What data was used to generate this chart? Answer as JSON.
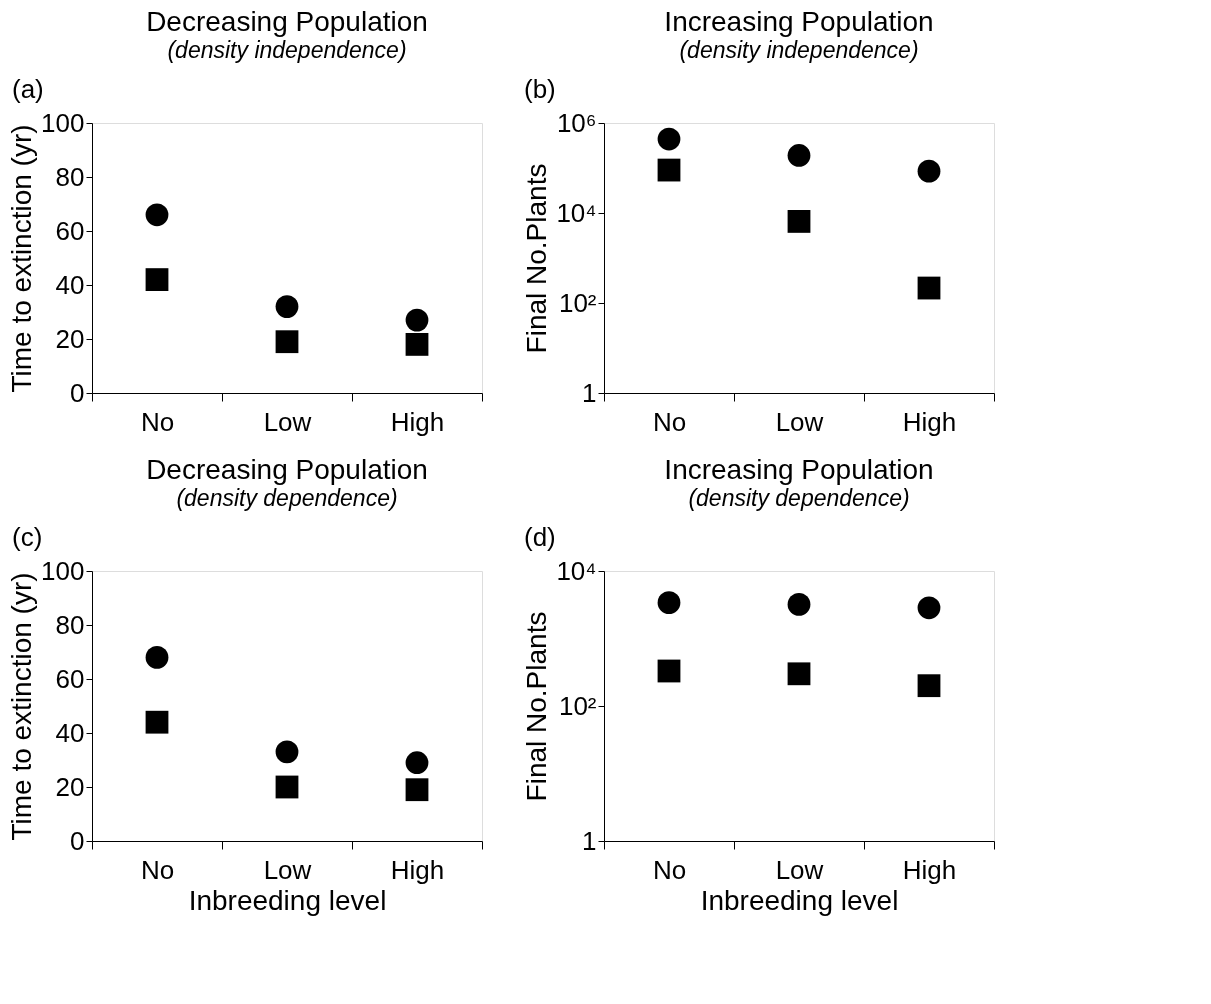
{
  "chart_data": [
    {
      "type": "scatter",
      "title": "Decreasing Population",
      "subtitle": "(density independence)",
      "annotations": [
        "(a)"
      ],
      "ylabel": "Time to extinction (yr)",
      "categories": [
        "No",
        "Low",
        "High"
      ],
      "ylim": [
        0,
        100
      ],
      "yticks": [
        0,
        20,
        40,
        60,
        80,
        100
      ],
      "grid": false,
      "series": [
        {
          "color": "#000000",
          "marker": "circle",
          "values": [
            66,
            32,
            27
          ]
        },
        {
          "color": "#000000",
          "marker": "square",
          "values": [
            42,
            19,
            18
          ]
        }
      ]
    },
    {
      "type": "scatter",
      "title": "Increasing Population",
      "subtitle": "(density independence)",
      "annotations": [
        "(b)"
      ],
      "ylabel": "Final No.Plants",
      "categories": [
        "No",
        "Low",
        "High"
      ],
      "log": true,
      "ylim": [
        1,
        1000000
      ],
      "yticks": [
        1,
        {
          "value": 100,
          "label": "10²"
        },
        {
          "value": 10000,
          "label": "10⁴"
        },
        {
          "value": 1000000,
          "label": "10⁶"
        }
      ],
      "grid": false,
      "series": [
        {
          "color": "#000000",
          "marker": "circle",
          "values": [
            440000,
            190000,
            85000
          ]
        },
        {
          "color": "#000000",
          "marker": "square",
          "values": [
            90000,
            6500,
            215
          ]
        }
      ]
    },
    {
      "type": "scatter",
      "title": "Decreasing Population",
      "subtitle": "(density dependence)",
      "annotations": [
        "(c)"
      ],
      "ylabel": "Time to extinction (yr)",
      "xlabel": "Inbreeding level",
      "categories": [
        "No",
        "Low",
        "High"
      ],
      "ylim": [
        0,
        100
      ],
      "yticks": [
        0,
        20,
        40,
        60,
        80,
        100
      ],
      "grid": false,
      "series": [
        {
          "color": "#000000",
          "marker": "circle",
          "values": [
            68,
            33,
            29
          ]
        },
        {
          "color": "#000000",
          "marker": "square",
          "values": [
            44,
            20,
            19
          ]
        }
      ]
    },
    {
      "type": "scatter",
      "title": "Increasing Population",
      "subtitle": "(density dependence)",
      "annotations": [
        "(d)"
      ],
      "ylabel": "Final No.Plants",
      "xlabel": "Inbreeding level",
      "categories": [
        "No",
        "Low",
        "High"
      ],
      "log": true,
      "ylim": [
        1,
        10000
      ],
      "yticks": [
        1,
        {
          "value": 100,
          "label": "10²"
        },
        {
          "value": 10000,
          "label": "10⁴"
        }
      ],
      "grid": false,
      "series": [
        {
          "color": "#000000",
          "marker": "circle",
          "values": [
            3400,
            3200,
            2850
          ]
        },
        {
          "color": "#000000",
          "marker": "square",
          "values": [
            330,
            300,
            200
          ]
        }
      ]
    }
  ]
}
